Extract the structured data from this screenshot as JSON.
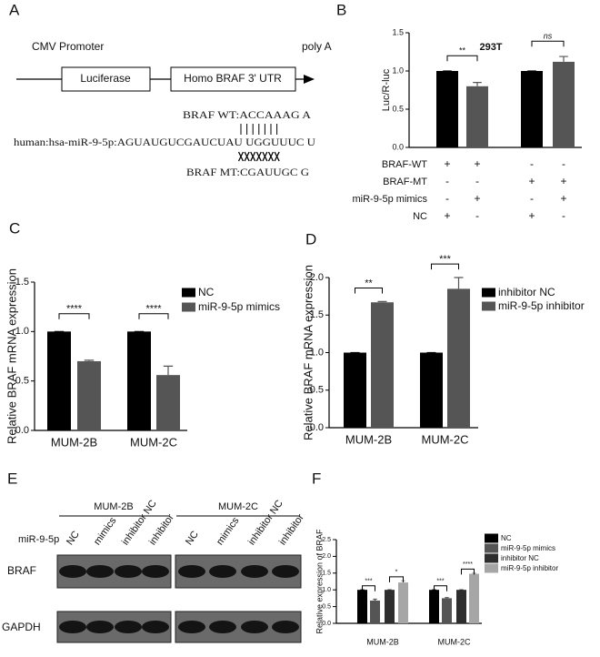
{
  "panels": [
    "A",
    "B",
    "C",
    "D",
    "E",
    "F"
  ],
  "panel_a": {
    "promoter": "CMV Promoter",
    "terminator": "poly A",
    "box1": "Luciferase",
    "box2": "Homo BRAF 3' UTR",
    "wt": "BRAF WT:ACCAAAG A",
    "mirna": "human:hsa-miR-9-5p:AGUAUGUCGAUCUAU UGGUUUC U",
    "mt": "BRAF MT:CGAUUGC G"
  },
  "chart_data": [
    {
      "type": "bar",
      "title": "293T",
      "ylabel": "Luc/R-luc",
      "ylim": [
        0,
        1.5
      ],
      "yticks": [
        {
          "value": 0,
          "label": "0.0"
        },
        {
          "value": 0.5,
          "label": "0.5"
        },
        {
          "value": 1,
          "label": "1.0"
        },
        {
          "value": 1.5,
          "label": "1.5"
        }
      ],
      "values": [
        1.0,
        0.8,
        1.0,
        1.12
      ],
      "errors": [
        0,
        0.05,
        0,
        0.07
      ],
      "colors": [
        "#000000",
        "#555555",
        "#000000",
        "#555555"
      ],
      "significance": [
        "**",
        "ns"
      ],
      "conditions": [
        {
          "label": "BRAF-WT",
          "signs": [
            "+",
            "+",
            "-",
            "-"
          ]
        },
        {
          "label": "BRAF-MT",
          "signs": [
            "-",
            "-",
            "+",
            "+"
          ]
        },
        {
          "label": "miR-9-5p mimics",
          "signs": [
            "-",
            "+",
            "-",
            "+"
          ]
        },
        {
          "label": "NC",
          "signs": [
            "+",
            "-",
            "+",
            "-"
          ]
        }
      ]
    },
    {
      "type": "grouped_bar",
      "ylabel": "Relative BRAF mRNA expression",
      "categories": [
        "MUM-2B",
        "MUM-2C"
      ],
      "ylim": [
        0,
        1.5
      ],
      "yticks": [
        {
          "value": 0,
          "label": "0.0"
        },
        {
          "value": 0.5,
          "label": "0.5"
        },
        {
          "value": 1,
          "label": "1.0"
        },
        {
          "value": 1.5,
          "label": "1.5"
        }
      ],
      "series": [
        {
          "name": "NC",
          "color": "#000000",
          "values": [
            1.0,
            1.0
          ],
          "errors": [
            0,
            0
          ]
        },
        {
          "name": "miR-9-5p mimics",
          "color": "#555555",
          "values": [
            0.7,
            0.56
          ],
          "errors": [
            0.01,
            0.09
          ]
        }
      ],
      "significance": [
        "****",
        "****"
      ]
    },
    {
      "type": "grouped_bar",
      "ylabel": "Relative BRAF mRNA expression",
      "categories": [
        "MUM-2B",
        "MUM-2C"
      ],
      "ylim": [
        0,
        2
      ],
      "yticks": [
        {
          "value": 0,
          "label": "0.0"
        },
        {
          "value": 0.5,
          "label": "0.5"
        },
        {
          "value": 1,
          "label": "1.0"
        },
        {
          "value": 1.5,
          "label": "1.5"
        },
        {
          "value": 2,
          "label": "2.0"
        }
      ],
      "series": [
        {
          "name": "inhibitor NC",
          "color": "#000000",
          "values": [
            1.0,
            1.0
          ],
          "errors": [
            0,
            0
          ]
        },
        {
          "name": "miR-9-5p inhibitor",
          "color": "#555555",
          "values": [
            1.67,
            1.85
          ],
          "errors": [
            0.01,
            0.15
          ]
        }
      ],
      "significance": [
        "**",
        "***"
      ]
    },
    {
      "type": "grouped_bar",
      "ylabel": "Relative expression of BRAF",
      "categories": [
        "MUM-2B",
        "MUM-2C"
      ],
      "ylim": [
        0,
        2.5
      ],
      "yticks": [
        {
          "value": 0,
          "label": "0.0"
        },
        {
          "value": 0.5,
          "label": "0.5"
        },
        {
          "value": 1,
          "label": "1.0"
        },
        {
          "value": 1.5,
          "label": "1.5"
        },
        {
          "value": 2,
          "label": "2.0"
        },
        {
          "value": 2.5,
          "label": "2.5"
        }
      ],
      "series": [
        {
          "name": "NC",
          "color": "#000000",
          "values": [
            1.0,
            1.0
          ],
          "errors": [
            0,
            0
          ]
        },
        {
          "name": "miR-9-5p mimics",
          "color": "#555555",
          "values": [
            0.68,
            0.75
          ],
          "errors": [
            0.04,
            0.02
          ]
        },
        {
          "name": "inhibitor NC",
          "color": "#2e2e2e",
          "values": [
            1.0,
            1.0
          ],
          "errors": [
            0,
            0
          ]
        },
        {
          "name": "miR-9-5p inhibitor",
          "color": "#a6a6a6",
          "values": [
            1.22,
            1.48
          ],
          "errors": [
            0.05,
            0.02
          ]
        }
      ],
      "significance": [
        "***",
        "*",
        "***",
        "****"
      ]
    }
  ],
  "panel_e": {
    "groups": [
      "MUM-2B",
      "MUM-2C"
    ],
    "lanes": [
      "NC",
      "mimics",
      "inhibitor NC",
      "inhibitor"
    ],
    "row_header": "miR-9-5p",
    "rows": [
      "BRAF",
      "GAPDH"
    ]
  }
}
